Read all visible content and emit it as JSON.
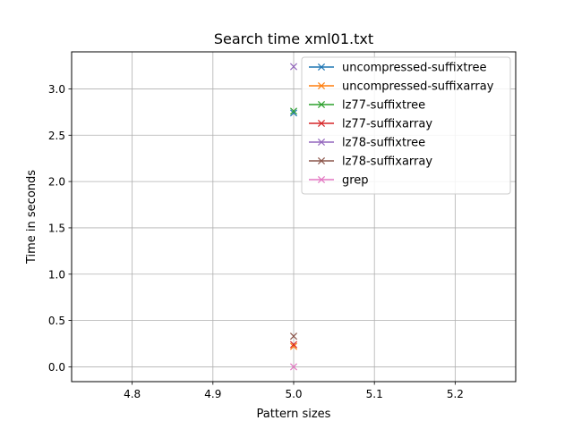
{
  "chart_data": {
    "type": "line",
    "title": "Search time xml01.txt",
    "xlabel": "Pattern sizes",
    "ylabel": "Time in seconds",
    "xlim": [
      4.725,
      5.275
    ],
    "ylim": [
      -0.16,
      3.4
    ],
    "xticks": [
      4.8,
      4.9,
      5.0,
      5.1,
      5.2
    ],
    "xtick_labels": [
      "4.8",
      "4.9",
      "5.0",
      "5.1",
      "5.2"
    ],
    "yticks": [
      0.0,
      0.5,
      1.0,
      1.5,
      2.0,
      2.5,
      3.0
    ],
    "ytick_labels": [
      "0.0",
      "0.5",
      "1.0",
      "1.5",
      "2.0",
      "2.5",
      "3.0"
    ],
    "grid": true,
    "legend_position": "top-right",
    "marker": "x",
    "series": [
      {
        "name": "uncompressed-suffixtree",
        "color": "#1f77b4",
        "x": [
          5.0
        ],
        "y": [
          2.74
        ]
      },
      {
        "name": "uncompressed-suffixarray",
        "color": "#ff7f0e",
        "x": [
          5.0
        ],
        "y": [
          0.22
        ]
      },
      {
        "name": "lz77-suffixtree",
        "color": "#2ca02c",
        "x": [
          5.0
        ],
        "y": [
          2.76
        ]
      },
      {
        "name": "lz77-suffixarray",
        "color": "#d62728",
        "x": [
          5.0
        ],
        "y": [
          0.24
        ]
      },
      {
        "name": "lz78-suffixtree",
        "color": "#9467bd",
        "x": [
          5.0
        ],
        "y": [
          3.24
        ]
      },
      {
        "name": "lz78-suffixarray",
        "color": "#8c564b",
        "x": [
          5.0
        ],
        "y": [
          0.33
        ]
      },
      {
        "name": "grep",
        "color": "#e377c2",
        "x": [
          5.0
        ],
        "y": [
          0.0
        ]
      }
    ]
  }
}
